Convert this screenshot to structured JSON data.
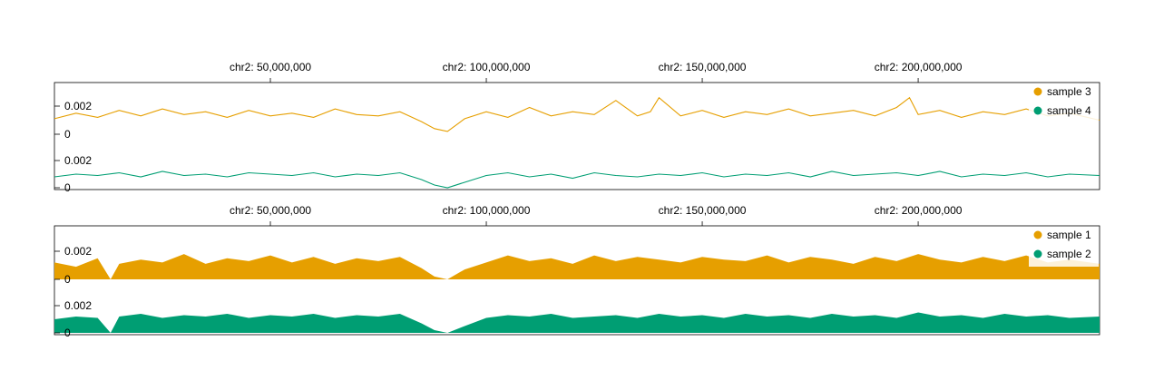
{
  "chart_data": [
    {
      "type": "line",
      "x_axis": {
        "label_prefix": "chr2:",
        "ticks": [
          {
            "value": 50000000,
            "label": "chr2: 50,000,000"
          },
          {
            "value": 100000000,
            "label": "chr2: 100,000,000"
          },
          {
            "value": 150000000,
            "label": "chr2: 150,000,000"
          },
          {
            "value": 200000000,
            "label": "chr2: 200,000,000"
          }
        ],
        "range": [
          0,
          242000000
        ]
      },
      "legend": {
        "placement": "top-right"
      },
      "grid": false,
      "series": [
        {
          "name": "sample 3",
          "color": "#E69F00",
          "ylim": [
            0,
            0.004
          ],
          "ticks": [
            {
              "value": 0.002,
              "label": "0.002"
            },
            {
              "value": 0,
              "label": "0"
            }
          ],
          "x": [
            0,
            5000000,
            10000000,
            15000000,
            20000000,
            25000000,
            30000000,
            35000000,
            40000000,
            45000000,
            50000000,
            55000000,
            60000000,
            65000000,
            70000000,
            75000000,
            80000000,
            85000000,
            88000000,
            91000000,
            95000000,
            100000000,
            105000000,
            110000000,
            115000000,
            120000000,
            125000000,
            130000000,
            135000000,
            138000000,
            140000000,
            145000000,
            150000000,
            155000000,
            160000000,
            165000000,
            170000000,
            175000000,
            180000000,
            185000000,
            190000000,
            195000000,
            198000000,
            200000000,
            205000000,
            210000000,
            215000000,
            220000000,
            225000000,
            230000000,
            235000000,
            242000000
          ],
          "y": [
            0.0011,
            0.0015,
            0.0012,
            0.0017,
            0.0013,
            0.0018,
            0.0014,
            0.0016,
            0.0012,
            0.0017,
            0.0013,
            0.0015,
            0.0012,
            0.0018,
            0.0014,
            0.0013,
            0.0016,
            0.0009,
            0.0004,
            0.0002,
            0.0011,
            0.0016,
            0.0012,
            0.0019,
            0.0013,
            0.0016,
            0.0014,
            0.0024,
            0.0013,
            0.0016,
            0.0026,
            0.0013,
            0.0017,
            0.0012,
            0.0016,
            0.0014,
            0.0018,
            0.0013,
            0.0015,
            0.0017,
            0.0013,
            0.0019,
            0.0026,
            0.0014,
            0.0017,
            0.0012,
            0.0016,
            0.0014,
            0.0018,
            0.0013,
            0.0015,
            0.001
          ]
        },
        {
          "name": "sample 4",
          "color": "#009E73",
          "ylim": [
            0,
            0.004
          ],
          "ticks": [
            {
              "value": 0.002,
              "label": "0.002"
            },
            {
              "value": 0,
              "label": "0"
            }
          ],
          "x": [
            0,
            5000000,
            10000000,
            15000000,
            20000000,
            25000000,
            30000000,
            35000000,
            40000000,
            45000000,
            50000000,
            55000000,
            60000000,
            65000000,
            70000000,
            75000000,
            80000000,
            85000000,
            88000000,
            91000000,
            95000000,
            100000000,
            105000000,
            110000000,
            115000000,
            120000000,
            125000000,
            130000000,
            135000000,
            140000000,
            145000000,
            150000000,
            155000000,
            160000000,
            165000000,
            170000000,
            175000000,
            180000000,
            185000000,
            190000000,
            195000000,
            200000000,
            205000000,
            210000000,
            215000000,
            220000000,
            225000000,
            230000000,
            235000000,
            242000000
          ],
          "y": [
            0.0008,
            0.001,
            0.0009,
            0.0011,
            0.0008,
            0.0012,
            0.0009,
            0.001,
            0.0008,
            0.0011,
            0.001,
            0.0009,
            0.0011,
            0.0008,
            0.001,
            0.0009,
            0.0011,
            0.0006,
            0.0002,
            0.0,
            0.0004,
            0.0009,
            0.0011,
            0.0008,
            0.001,
            0.0007,
            0.0011,
            0.0009,
            0.0008,
            0.001,
            0.0009,
            0.0011,
            0.0008,
            0.001,
            0.0009,
            0.0011,
            0.0008,
            0.0012,
            0.0009,
            0.001,
            0.0011,
            0.0009,
            0.0012,
            0.0008,
            0.001,
            0.0009,
            0.0011,
            0.0008,
            0.001,
            0.0009
          ]
        }
      ]
    },
    {
      "type": "area",
      "x_axis": {
        "label_prefix": "chr2:",
        "ticks": [
          {
            "value": 50000000,
            "label": "chr2: 50,000,000"
          },
          {
            "value": 100000000,
            "label": "chr2: 100,000,000"
          },
          {
            "value": 150000000,
            "label": "chr2: 150,000,000"
          },
          {
            "value": 200000000,
            "label": "chr2: 200,000,000"
          }
        ],
        "range": [
          0,
          242000000
        ]
      },
      "legend": {
        "placement": "top-right"
      },
      "grid": false,
      "series": [
        {
          "name": "sample 1",
          "color": "#E69F00",
          "ylim": [
            0,
            0.004
          ],
          "ticks": [
            {
              "value": 0.002,
              "label": "0.002"
            },
            {
              "value": 0,
              "label": "0"
            }
          ],
          "x": [
            0,
            5000000,
            10000000,
            13000000,
            15000000,
            20000000,
            25000000,
            30000000,
            35000000,
            40000000,
            45000000,
            50000000,
            55000000,
            60000000,
            65000000,
            70000000,
            75000000,
            80000000,
            85000000,
            88000000,
            91000000,
            95000000,
            100000000,
            105000000,
            110000000,
            115000000,
            120000000,
            125000000,
            130000000,
            135000000,
            140000000,
            145000000,
            150000000,
            155000000,
            160000000,
            165000000,
            170000000,
            175000000,
            180000000,
            185000000,
            190000000,
            195000000,
            200000000,
            205000000,
            210000000,
            215000000,
            220000000,
            225000000,
            230000000,
            235000000,
            242000000
          ],
          "y": [
            0.0012,
            0.0009,
            0.0015,
            0.0,
            0.0011,
            0.0014,
            0.0012,
            0.0018,
            0.0011,
            0.0015,
            0.0013,
            0.0017,
            0.0012,
            0.0016,
            0.0011,
            0.0015,
            0.0013,
            0.0016,
            0.0008,
            0.0002,
            0.0,
            0.0007,
            0.0012,
            0.0017,
            0.0013,
            0.0015,
            0.0011,
            0.0017,
            0.0013,
            0.0016,
            0.0014,
            0.0012,
            0.0016,
            0.0014,
            0.0013,
            0.0017,
            0.0012,
            0.0016,
            0.0014,
            0.0011,
            0.0016,
            0.0013,
            0.0018,
            0.0014,
            0.0012,
            0.0016,
            0.0013,
            0.0017,
            0.0012,
            0.0014,
            0.0011
          ]
        },
        {
          "name": "sample 2",
          "color": "#009E73",
          "ylim": [
            0,
            0.004
          ],
          "ticks": [
            {
              "value": 0.002,
              "label": "0.002"
            },
            {
              "value": 0,
              "label": "0"
            }
          ],
          "x": [
            0,
            5000000,
            10000000,
            13000000,
            15000000,
            20000000,
            25000000,
            30000000,
            35000000,
            40000000,
            45000000,
            50000000,
            55000000,
            60000000,
            65000000,
            70000000,
            75000000,
            80000000,
            85000000,
            88000000,
            91000000,
            95000000,
            100000000,
            105000000,
            110000000,
            115000000,
            120000000,
            125000000,
            130000000,
            135000000,
            140000000,
            145000000,
            150000000,
            155000000,
            160000000,
            165000000,
            170000000,
            175000000,
            180000000,
            185000000,
            190000000,
            195000000,
            200000000,
            205000000,
            210000000,
            215000000,
            220000000,
            225000000,
            230000000,
            235000000,
            242000000
          ],
          "y": [
            0.001,
            0.0012,
            0.0011,
            0.0,
            0.0012,
            0.0014,
            0.0011,
            0.0013,
            0.0012,
            0.0014,
            0.0011,
            0.0013,
            0.0012,
            0.0014,
            0.0011,
            0.0013,
            0.0012,
            0.0014,
            0.0007,
            0.0002,
            0.0,
            0.0005,
            0.0011,
            0.0013,
            0.0012,
            0.0014,
            0.0011,
            0.0012,
            0.0013,
            0.0011,
            0.0014,
            0.0012,
            0.0013,
            0.0011,
            0.0014,
            0.0012,
            0.0013,
            0.0011,
            0.0014,
            0.0012,
            0.0013,
            0.0011,
            0.0015,
            0.0012,
            0.0013,
            0.0011,
            0.0014,
            0.0012,
            0.0013,
            0.0011,
            0.0012
          ]
        }
      ]
    }
  ]
}
